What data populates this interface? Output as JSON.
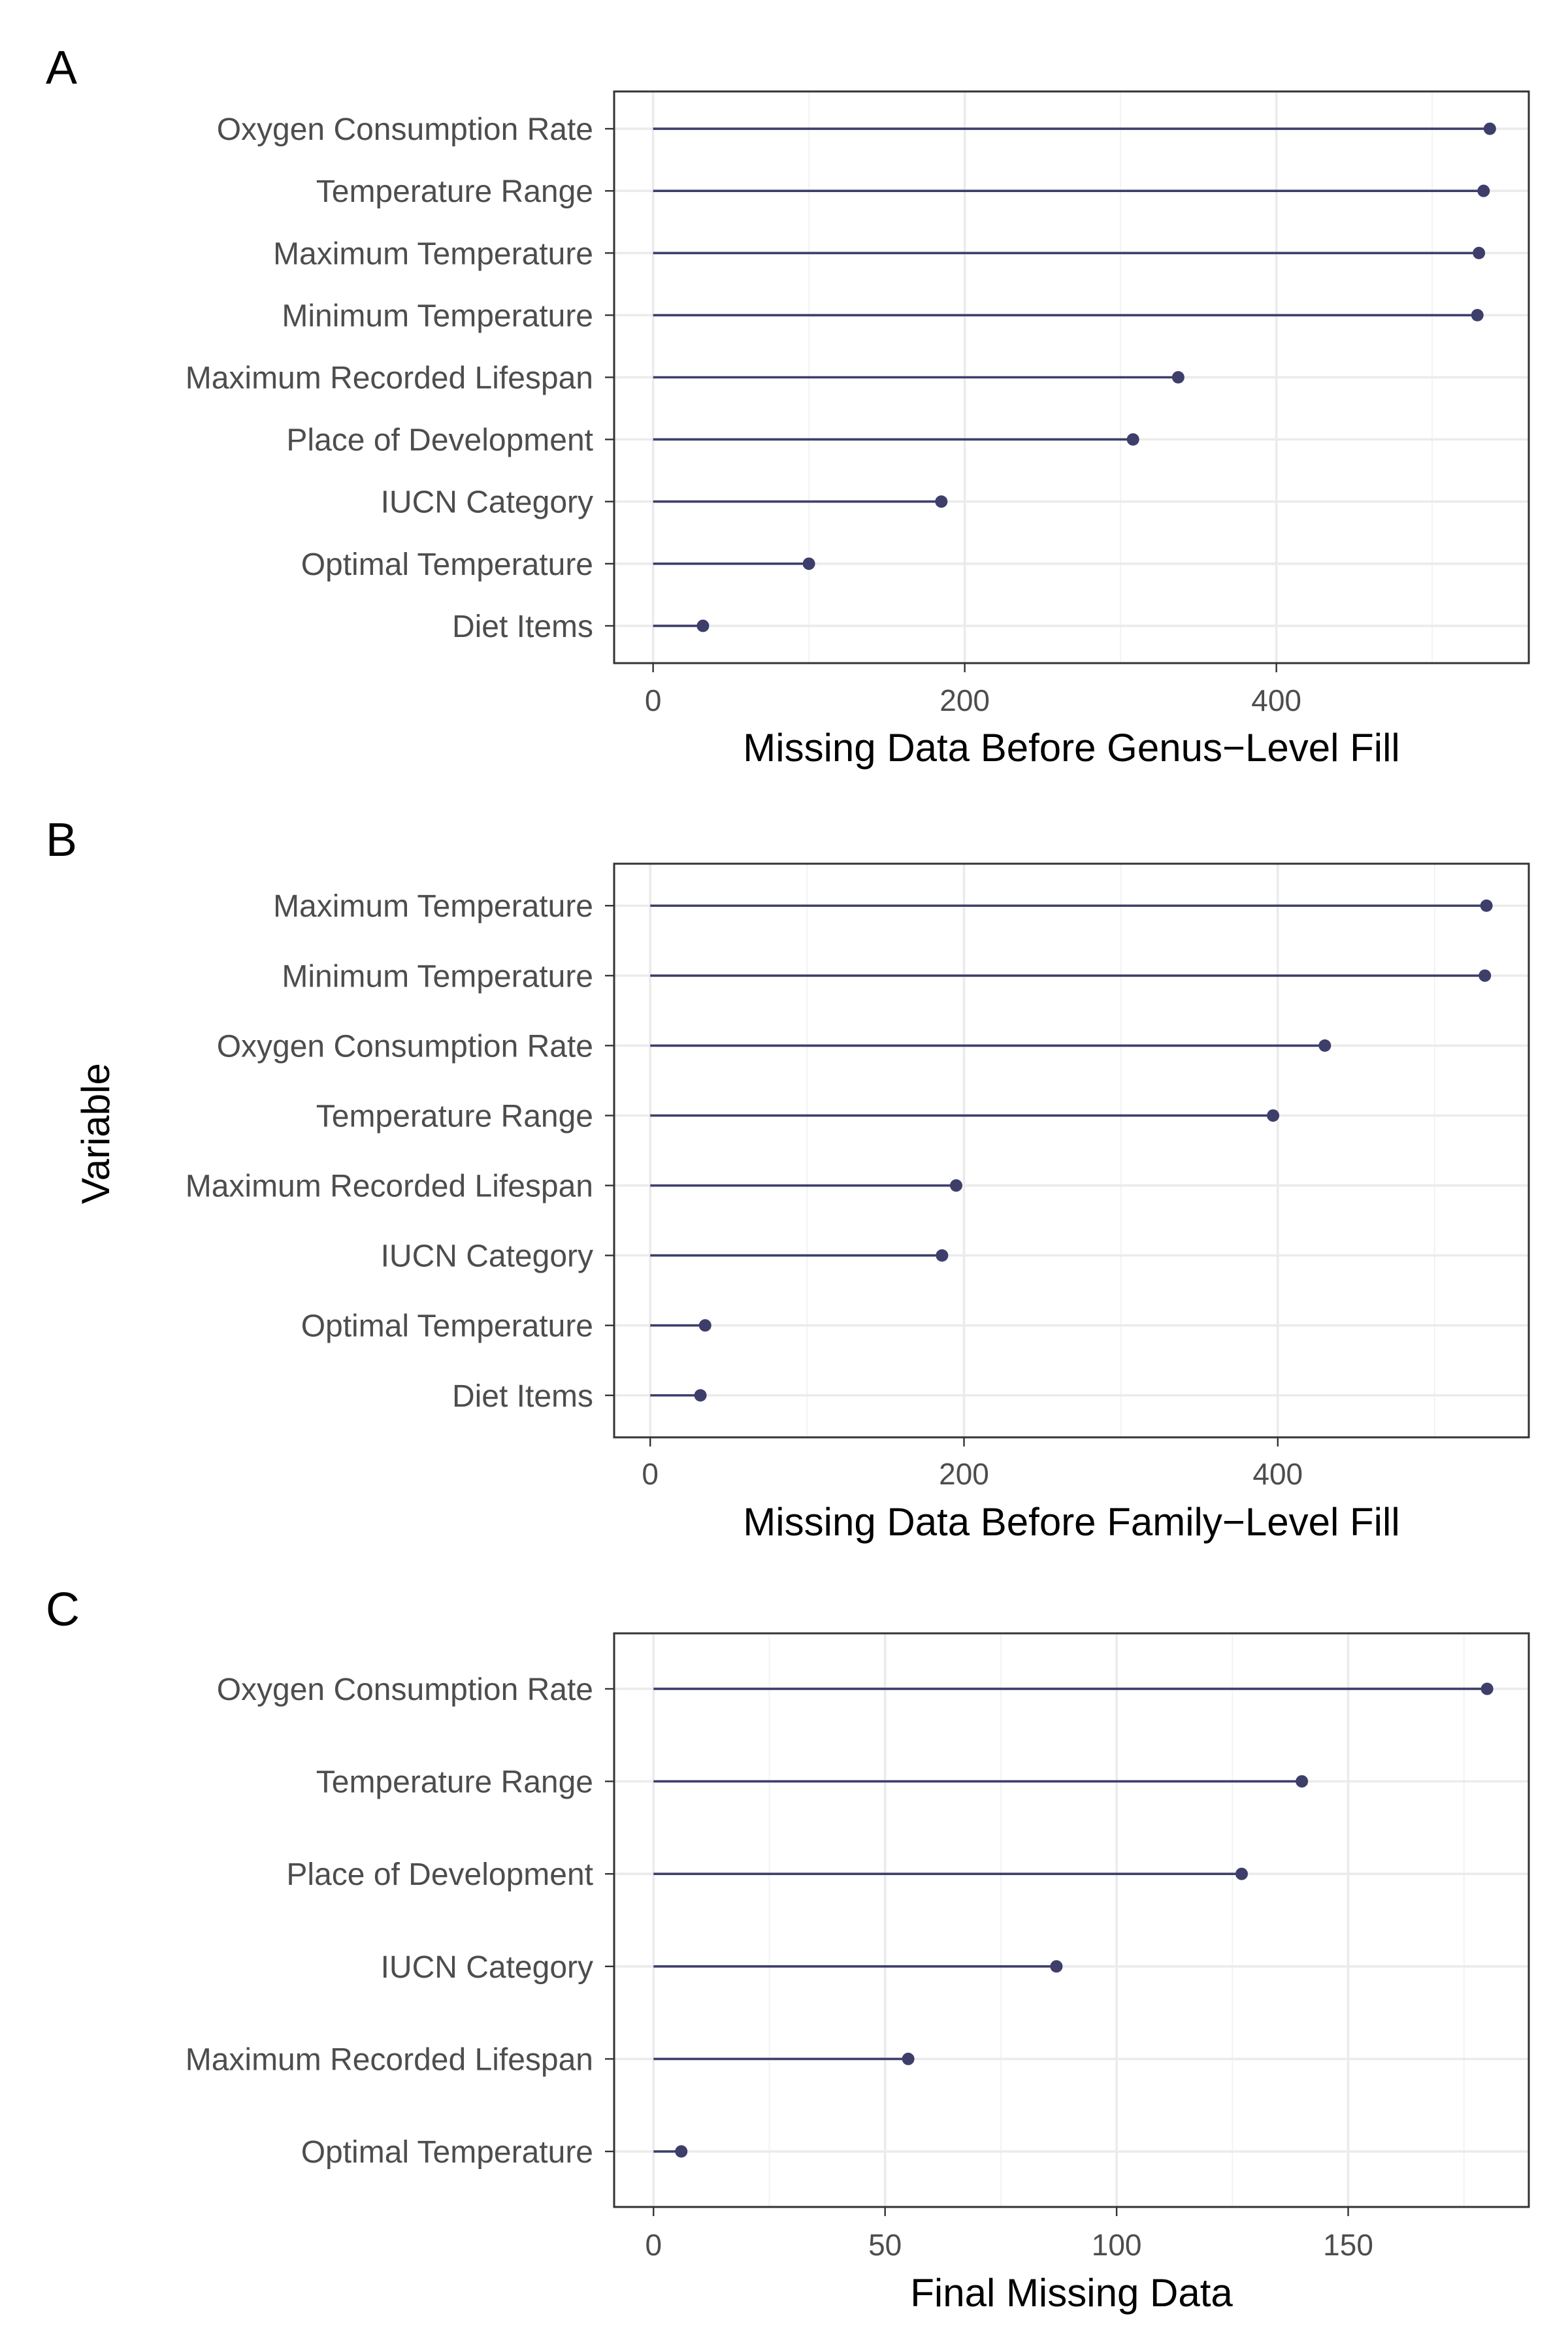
{
  "figure": {
    "ylabel": "Variable",
    "colors": {
      "mark": "#3e3e6b"
    }
  },
  "chart_data": [
    {
      "type": "lollipop",
      "panel": "A",
      "xlabel": "Missing Data Before Genus−Level Fill",
      "categories": [
        "Oxygen Consumption Rate",
        "Temperature Range",
        "Maximum Temperature",
        "Minimum Temperature",
        "Maximum Recorded Lifespan",
        "Place of Development",
        "IUCN Category",
        "Optimal Temperature",
        "Diet Items"
      ],
      "values": [
        537,
        533,
        530,
        529,
        337,
        308,
        185,
        100,
        32
      ],
      "xlim": [
        -25,
        562
      ],
      "xticks": [
        0,
        200,
        400
      ],
      "xtick_labels": [
        "0",
        "200",
        "400"
      ],
      "grid": true
    },
    {
      "type": "lollipop",
      "panel": "B",
      "xlabel": "Missing Data Before Family−Level Fill",
      "categories": [
        "Maximum Temperature",
        "Minimum Temperature",
        "Oxygen Consumption Rate",
        "Temperature Range",
        "Maximum Recorded Lifespan",
        "IUCN Category",
        "Optimal Temperature",
        "Diet Items"
      ],
      "values": [
        533,
        532,
        430,
        397,
        195,
        186,
        35,
        32
      ],
      "xlim": [
        -23,
        560
      ],
      "xticks": [
        0,
        200,
        400
      ],
      "xtick_labels": [
        "0",
        "200",
        "400"
      ],
      "grid": true
    },
    {
      "type": "lollipop",
      "panel": "C",
      "xlabel": "Final Missing Data",
      "categories": [
        "Oxygen Consumption Rate",
        "Temperature Range",
        "Place of Development",
        "IUCN Category",
        "Maximum Recorded Lifespan",
        "Optimal Temperature"
      ],
      "values": [
        180,
        140,
        127,
        87,
        55,
        6
      ],
      "xlim": [
        -8.5,
        189
      ],
      "xticks": [
        0,
        50,
        100,
        150
      ],
      "xtick_labels": [
        "0",
        "50",
        "100",
        "150"
      ],
      "grid": true
    }
  ]
}
